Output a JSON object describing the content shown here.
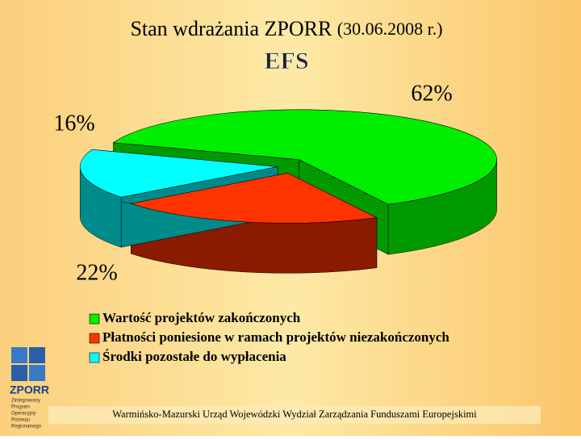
{
  "chart_data": {
    "type": "pie3d",
    "title": "Stan wdrażania ZPORR",
    "title_date": "(30.06.2008 r.)",
    "subtitle": "EFS",
    "categories": [
      "Wartość projektów zakończonych",
      "Płatności poniesione w ramach projektów niezakończonych",
      "Środki pozostałe do wypłacenia"
    ],
    "values": [
      62,
      22,
      16
    ],
    "value_labels": [
      "62%",
      "22%",
      "16%"
    ],
    "colors": [
      "#00ee00",
      "#ff3300",
      "#00ffff"
    ],
    "side_colors": [
      "#009900",
      "#8a1a00",
      "#008b8b"
    ]
  },
  "footer": "Warmińsko-Mazurski Urząd Wojewódzki Wydział Zarządzania Funduszami Europejskimi",
  "logo": {
    "name": "ZPORR",
    "lines": [
      "Zintegrowany",
      "Program",
      "Operacyjny",
      "Rozwoju",
      "Regionalnego"
    ]
  }
}
